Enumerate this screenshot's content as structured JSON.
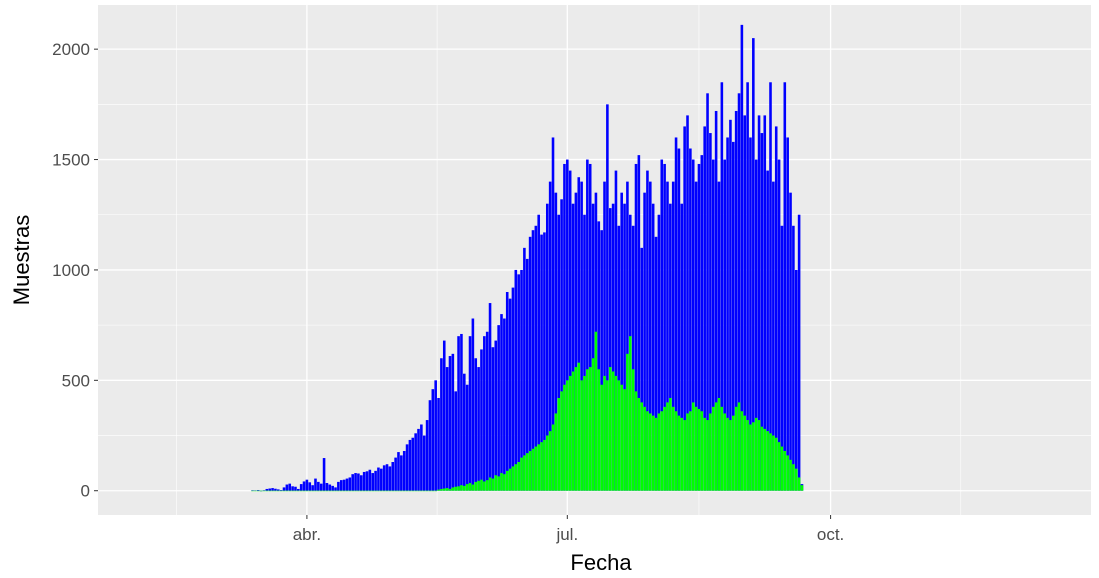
{
  "chart_data": {
    "type": "bar",
    "title": "",
    "xlabel": "Fecha",
    "ylabel": "Muestras",
    "ylim": [
      -110,
      2200
    ],
    "yticks": [
      0,
      500,
      1000,
      1500,
      2000
    ],
    "xticks": [
      {
        "date": "2020-04-01",
        "label": "abr."
      },
      {
        "date": "2020-07-01",
        "label": "jul."
      },
      {
        "date": "2020-10-01",
        "label": "oct."
      }
    ],
    "xlim": [
      "2020-01-19",
      "2020-12-31"
    ],
    "grid": true,
    "legend": "none",
    "stacked": false,
    "start_date": "2020-03-13",
    "series": [
      {
        "color": "#0000FF",
        "values": [
          2,
          1,
          3,
          0,
          2,
          8,
          10,
          12,
          9,
          6,
          3,
          15,
          28,
          32,
          20,
          18,
          8,
          30,
          42,
          50,
          38,
          25,
          55,
          40,
          32,
          148,
          35,
          28,
          22,
          15,
          40,
          48,
          50,
          55,
          60,
          75,
          80,
          78,
          70,
          85,
          88,
          95,
          80,
          90,
          105,
          100,
          115,
          120,
          110,
          130,
          150,
          175,
          160,
          180,
          210,
          230,
          240,
          260,
          280,
          300,
          250,
          320,
          410,
          460,
          500,
          420,
          600,
          680,
          560,
          610,
          620,
          450,
          700,
          710,
          530,
          480,
          700,
          780,
          600,
          560,
          640,
          700,
          720,
          850,
          650,
          680,
          750,
          800,
          780,
          900,
          870,
          920,
          1000,
          980,
          1000,
          1100,
          1050,
          1150,
          1180,
          1200,
          1250,
          1160,
          1170,
          1300,
          1400,
          1600,
          1350,
          1250,
          1320,
          1480,
          1500,
          1450,
          1300,
          1350,
          1420,
          1400,
          1250,
          1500,
          1480,
          1300,
          1350,
          1220,
          1180,
          1400,
          1750,
          1280,
          1300,
          1450,
          1200,
          1350,
          1300,
          1400,
          1250,
          1200,
          1480,
          1520,
          1100,
          1350,
          1450,
          1400,
          1300,
          1150,
          1250,
          1500,
          1480,
          1400,
          1300,
          1400,
          1600,
          1550,
          1300,
          1650,
          1700,
          1550,
          1500,
          1400,
          1480,
          1520,
          1650,
          1800,
          1620,
          1500,
          1720,
          1400,
          1850,
          1500,
          1600,
          1680,
          1580,
          1720,
          1800,
          2110,
          1700,
          1850,
          1600,
          2050,
          1500,
          1700,
          1620,
          1700,
          1450,
          1850,
          1400,
          1650,
          1500,
          1200,
          1850,
          1600,
          1350,
          1200,
          1000,
          1250,
          30
        ]
      },
      {
        "color": "#00FF00",
        "values": [
          0,
          0,
          0,
          0,
          0,
          0,
          0,
          0,
          0,
          0,
          0,
          0,
          0,
          0,
          0,
          0,
          0,
          0,
          0,
          0,
          0,
          0,
          0,
          0,
          0,
          0,
          0,
          0,
          0,
          0,
          0,
          0,
          0,
          0,
          0,
          0,
          0,
          0,
          0,
          0,
          0,
          0,
          0,
          0,
          0,
          0,
          0,
          0,
          0,
          0,
          0,
          0,
          0,
          0,
          0,
          0,
          0,
          0,
          0,
          0,
          0,
          0,
          0,
          0,
          0,
          5,
          8,
          10,
          12,
          8,
          15,
          18,
          20,
          25,
          22,
          30,
          35,
          28,
          40,
          45,
          50,
          42,
          48,
          60,
          55,
          70,
          65,
          80,
          75,
          90,
          100,
          110,
          120,
          130,
          150,
          160,
          170,
          180,
          190,
          200,
          210,
          220,
          230,
          250,
          270,
          300,
          350,
          420,
          450,
          480,
          500,
          520,
          540,
          560,
          580,
          500,
          520,
          550,
          560,
          600,
          720,
          550,
          480,
          520,
          500,
          560,
          540,
          520,
          500,
          480,
          460,
          620,
          700,
          550,
          450,
          420,
          400,
          380,
          360,
          350,
          340,
          330,
          350,
          360,
          380,
          400,
          420,
          380,
          360,
          340,
          330,
          320,
          350,
          360,
          400,
          380,
          370,
          360,
          330,
          320,
          350,
          380,
          400,
          420,
          380,
          350,
          330,
          320,
          340,
          380,
          400,
          360,
          340,
          320,
          300,
          310,
          330,
          320,
          290,
          280,
          270,
          260,
          250,
          240,
          220,
          200,
          180,
          160,
          140,
          120,
          100,
          60,
          25
        ]
      }
    ]
  }
}
